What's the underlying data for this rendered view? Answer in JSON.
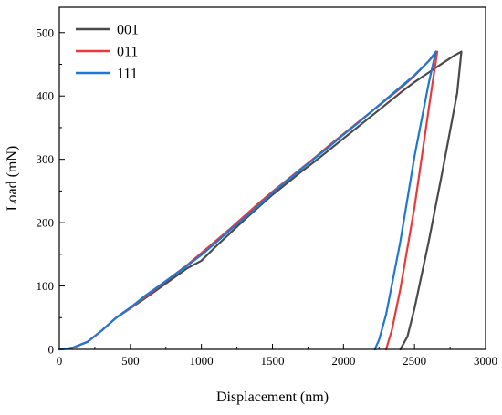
{
  "chart_data": {
    "type": "line",
    "title": "",
    "xlabel": "Displacement (nm)",
    "ylabel": "Load (mN)",
    "xlim": [
      0,
      3000
    ],
    "ylim": [
      0,
      540
    ],
    "xticks": [
      0,
      500,
      1000,
      1500,
      2000,
      2500,
      3000
    ],
    "yticks": [
      0,
      100,
      200,
      300,
      400,
      500
    ],
    "grid": false,
    "legend_position": "top-left",
    "series": [
      {
        "name": "001",
        "color": "#4a4a4a",
        "x": [
          0,
          50,
          100,
          200,
          300,
          400,
          500,
          600,
          700,
          800,
          900,
          1000,
          1100,
          1200,
          1300,
          1400,
          1500,
          1600,
          1700,
          1800,
          1900,
          2000,
          2100,
          2200,
          2300,
          2400,
          2500,
          2600,
          2700,
          2780,
          2830,
          2800,
          2700,
          2600,
          2500,
          2450,
          2400
        ],
        "y": [
          0,
          1,
          3,
          12,
          30,
          50,
          65,
          80,
          96,
          112,
          128,
          140,
          162,
          183,
          204,
          224,
          244,
          262,
          280,
          297,
          315,
          333,
          351,
          369,
          387,
          405,
          422,
          437,
          452,
          464,
          470,
          405,
          285,
          170,
          65,
          20,
          0
        ]
      },
      {
        "name": "011",
        "color": "#e83a3a",
        "x": [
          0,
          50,
          100,
          200,
          300,
          400,
          500,
          600,
          700,
          800,
          900,
          1000,
          1100,
          1200,
          1300,
          1400,
          1500,
          1600,
          1700,
          1800,
          1900,
          2000,
          2100,
          2200,
          2300,
          2400,
          2500,
          2600,
          2660,
          2620,
          2500,
          2400,
          2340,
          2300
        ],
        "y": [
          0,
          1,
          3,
          12,
          30,
          50,
          65,
          82,
          99,
          116,
          133,
          152,
          171,
          190,
          210,
          230,
          249,
          267,
          285,
          303,
          322,
          340,
          358,
          376,
          394,
          412,
          432,
          455,
          470,
          410,
          225,
          95,
          30,
          0
        ]
      },
      {
        "name": "111",
        "color": "#1f77d4",
        "x": [
          0,
          50,
          100,
          200,
          300,
          400,
          500,
          600,
          700,
          800,
          900,
          1000,
          1100,
          1200,
          1300,
          1400,
          1500,
          1600,
          1700,
          1800,
          1900,
          2000,
          2100,
          2200,
          2300,
          2400,
          2500,
          2600,
          2650,
          2600,
          2500,
          2400,
          2300,
          2250,
          2220
        ],
        "y": [
          0,
          1,
          3,
          12,
          30,
          50,
          66,
          84,
          100,
          116,
          132,
          149,
          168,
          188,
          207,
          226,
          247,
          266,
          284,
          302,
          320,
          339,
          357,
          376,
          395,
          414,
          433,
          455,
          470,
          420,
          305,
          170,
          55,
          15,
          0
        ]
      }
    ]
  }
}
